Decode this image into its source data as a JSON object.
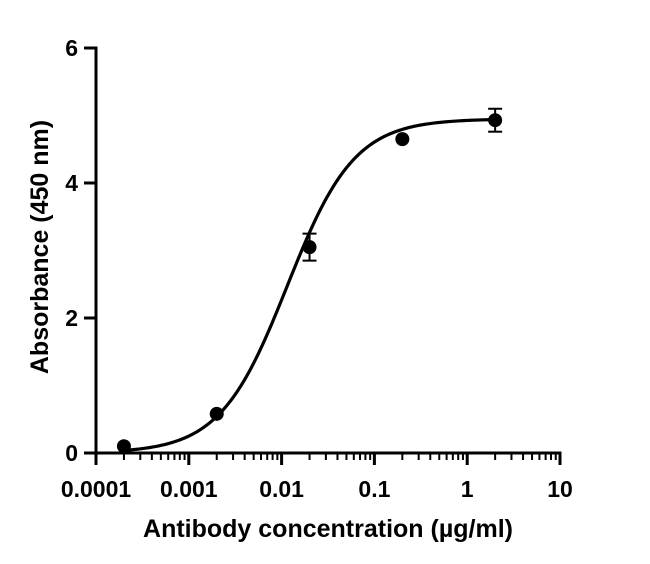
{
  "chart_data": {
    "type": "scatter",
    "xlabel": "Antibody concentration (µg/ml)",
    "ylabel": "Absorbance (450 nm)",
    "xscale": "log",
    "xlim": [
      0.0001,
      10
    ],
    "ylim": [
      0,
      6
    ],
    "xticks": [
      0.0001,
      0.001,
      0.01,
      0.1,
      1,
      10
    ],
    "xtick_labels": [
      "0.0001",
      "0.001",
      "0.01",
      "0.1",
      "1",
      "10"
    ],
    "yticks": [
      0,
      2,
      4,
      6
    ],
    "ytick_labels": [
      "0",
      "2",
      "4",
      "6"
    ],
    "grid": false,
    "legend": "none",
    "series": [
      {
        "points": [
          {
            "x": 0.0002,
            "y": 0.1,
            "err": 0.0
          },
          {
            "x": 0.002,
            "y": 0.58,
            "err": 0.0
          },
          {
            "x": 0.02,
            "y": 3.05,
            "err": 0.2
          },
          {
            "x": 0.2,
            "y": 4.65,
            "err": 0.0
          },
          {
            "x": 2,
            "y": 4.93,
            "err": 0.17
          }
        ],
        "fit": {
          "model": "4PL",
          "bottom": 0.0,
          "top": 4.95,
          "ec50": 0.0115,
          "hill": 1.2,
          "x_range": [
            0.0002,
            2
          ]
        }
      }
    ],
    "colors": {
      "marker": "#000000",
      "line": "#000000",
      "axis": "#000000"
    }
  }
}
